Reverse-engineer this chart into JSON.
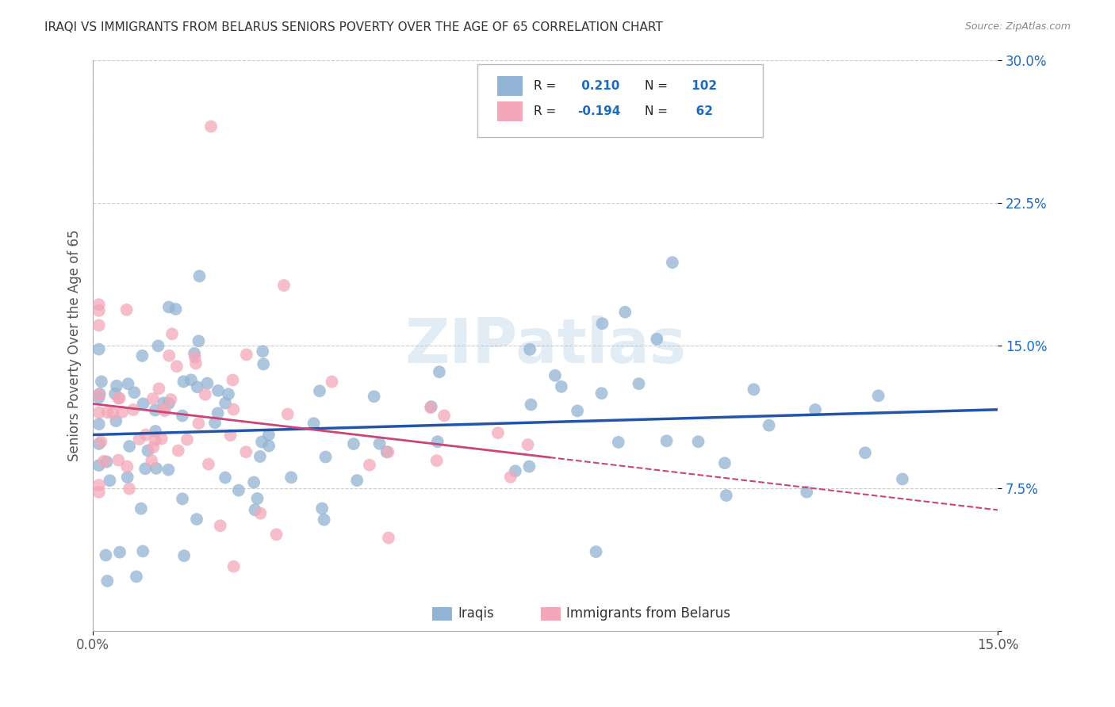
{
  "title": "IRAQI VS IMMIGRANTS FROM BELARUS SENIORS POVERTY OVER THE AGE OF 65 CORRELATION CHART",
  "source": "Source: ZipAtlas.com",
  "ylabel": "Seniors Poverty Over the Age of 65",
  "xmin": 0.0,
  "xmax": 0.15,
  "ymin": 0.0,
  "ymax": 0.3,
  "r_iraqi": 0.21,
  "n_iraqi": 102,
  "r_belarus": -0.194,
  "n_belarus": 62,
  "color_iraqi": "#92b4d4",
  "color_belarus": "#f4a7b9",
  "line_color_iraqi": "#2255aa",
  "line_color_belarus": "#cc4477",
  "background_color": "#ffffff",
  "grid_color": "#cccccc",
  "title_color": "#333333",
  "axis_label_color": "#555555",
  "watermark_text": "ZIPatlas"
}
